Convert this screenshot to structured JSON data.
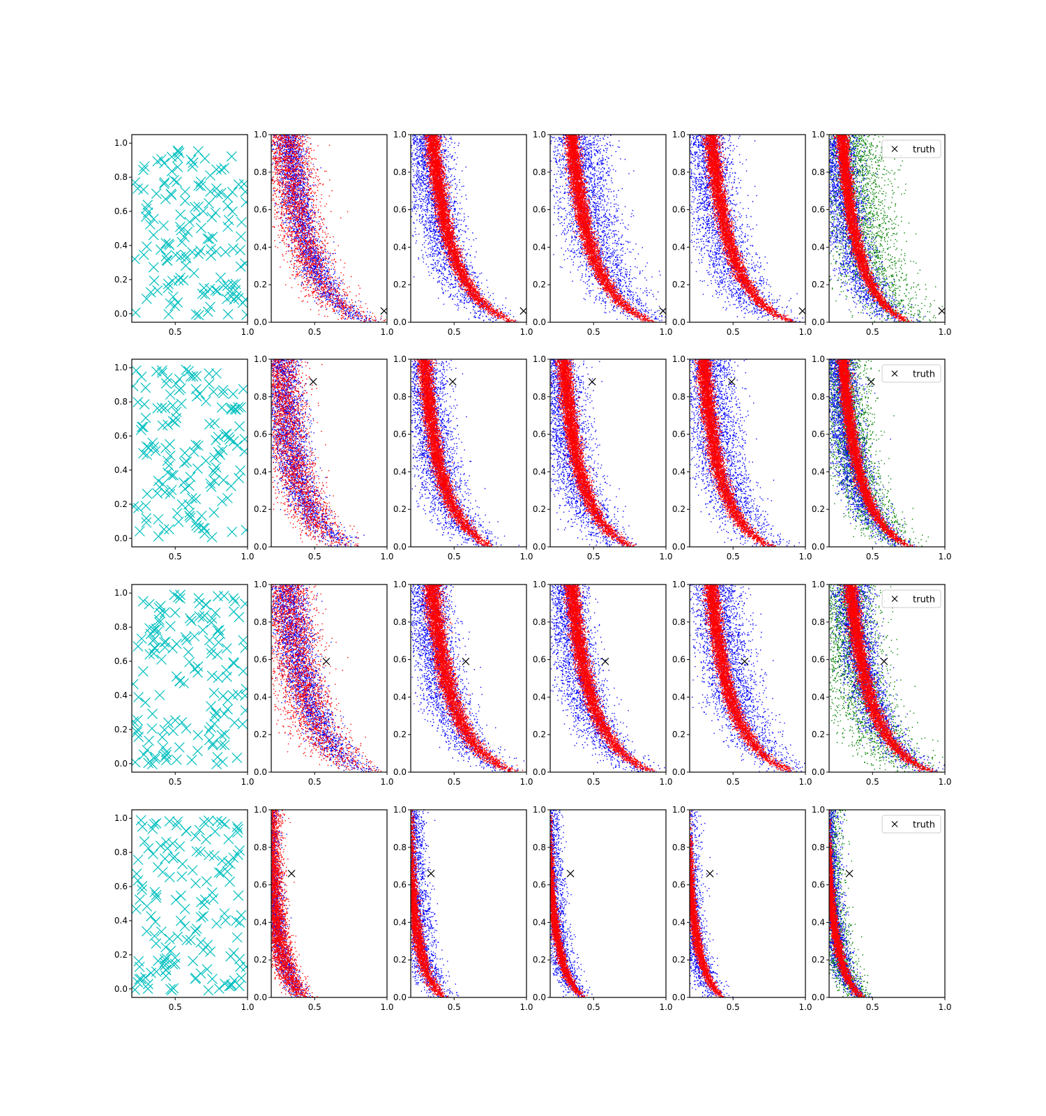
{
  "figure": {
    "colors": {
      "prior": "#00bfbf",
      "posterior_a": "#ff0000",
      "posterior_b": "#0000ff",
      "reference": "#008000",
      "truth": "#000000"
    }
  },
  "chart_data": {
    "type": "scatter",
    "layout": "grid",
    "rows": 4,
    "cols": 6,
    "legend": {
      "label": "truth",
      "marker": "x",
      "placement": "top-right",
      "columns": [
        5
      ]
    },
    "axes": {
      "prior": {
        "xlim": [
          0.2,
          1.0
        ],
        "ylim": [
          -0.05,
          1.05
        ],
        "xticks": [
          "0.5",
          "1.0"
        ],
        "yticks": [
          "0.0",
          "0.2",
          "0.4",
          "0.6",
          "0.8",
          "1.0"
        ]
      },
      "posterior": {
        "xlim": [
          0.2,
          1.0
        ],
        "ylim": [
          0.0,
          1.0
        ],
        "xticks": [
          "0.5",
          "1.0"
        ],
        "yticks": [
          "0.0",
          "0.2",
          "0.4",
          "0.6",
          "0.8",
          "1.0"
        ]
      }
    },
    "rows_data": [
      {
        "truth": [
          0.98,
          0.06
        ],
        "curve_k": 0.55,
        "prior_markers": 150,
        "panels": [
          {
            "col": 0,
            "type": "prior"
          },
          {
            "col": 1,
            "bands": [
              {
                "color": "posterior_b",
                "width": 0.1,
                "skew": 0.0
              },
              {
                "color": "posterior_a",
                "width": 0.16,
                "skew": 0.0
              }
            ],
            "band_highlight": "posterior_a"
          },
          {
            "col": 2,
            "bands": [
              {
                "color": "posterior_b",
                "width": 0.16,
                "skew": 0.0
              },
              {
                "color": "posterior_a",
                "width": 0.05,
                "skew": 0.0
              }
            ]
          },
          {
            "col": 3,
            "bands": [
              {
                "color": "posterior_b",
                "width": 0.18,
                "skew": 0.15
              },
              {
                "color": "posterior_a",
                "width": 0.05,
                "skew": 0.0
              }
            ]
          },
          {
            "col": 4,
            "bands": [
              {
                "color": "posterior_b",
                "width": 0.18,
                "skew": 0.0
              },
              {
                "color": "posterior_a",
                "width": 0.05,
                "skew": 0.0
              }
            ]
          },
          {
            "col": 5,
            "bands": [
              {
                "color": "reference",
                "width": 0.22,
                "skew": 0.18
              },
              {
                "color": "posterior_b",
                "width": 0.14,
                "skew": 0.0
              },
              {
                "color": "posterior_a",
                "width": 0.04,
                "skew": 0.0
              }
            ],
            "curve_k": 0.45
          }
        ]
      },
      {
        "truth": [
          0.49,
          0.88
        ],
        "curve_k": 0.46,
        "prior_markers": 150,
        "panels": [
          {
            "col": 0,
            "type": "prior"
          },
          {
            "col": 1,
            "bands": [
              {
                "color": "posterior_b",
                "width": 0.12,
                "skew": 0.0
              },
              {
                "color": "posterior_a",
                "width": 0.16,
                "skew": 0.0
              }
            ]
          },
          {
            "col": 2,
            "bands": [
              {
                "color": "posterior_b",
                "width": 0.16,
                "skew": 0.05
              },
              {
                "color": "posterior_a",
                "width": 0.05,
                "skew": 0.0
              }
            ]
          },
          {
            "col": 3,
            "bands": [
              {
                "color": "posterior_b",
                "width": 0.17,
                "skew": 0.0
              },
              {
                "color": "posterior_a",
                "width": 0.05,
                "skew": 0.0
              }
            ]
          },
          {
            "col": 4,
            "bands": [
              {
                "color": "posterior_b",
                "width": 0.17,
                "skew": 0.12
              },
              {
                "color": "posterior_a",
                "width": 0.05,
                "skew": 0.0
              }
            ]
          },
          {
            "col": 5,
            "bands": [
              {
                "color": "reference",
                "width": 0.16,
                "skew": 0.05
              },
              {
                "color": "posterior_b",
                "width": 0.12,
                "skew": 0.0
              },
              {
                "color": "posterior_a",
                "width": 0.04,
                "skew": 0.0
              }
            ]
          }
        ]
      },
      {
        "truth": [
          0.58,
          0.59
        ],
        "curve_k": 0.55,
        "prior_markers": 150,
        "panels": [
          {
            "col": 0,
            "type": "prior"
          },
          {
            "col": 1,
            "bands": [
              {
                "color": "posterior_b",
                "width": 0.12,
                "skew": 0.0
              },
              {
                "color": "posterior_a",
                "width": 0.18,
                "skew": 0.0
              }
            ]
          },
          {
            "col": 2,
            "bands": [
              {
                "color": "posterior_b",
                "width": 0.16,
                "skew": 0.0
              },
              {
                "color": "posterior_a",
                "width": 0.06,
                "skew": 0.0
              }
            ]
          },
          {
            "col": 3,
            "bands": [
              {
                "color": "posterior_b",
                "width": 0.15,
                "skew": 0.0
              },
              {
                "color": "posterior_a",
                "width": 0.05,
                "skew": 0.0
              }
            ]
          },
          {
            "col": 4,
            "bands": [
              {
                "color": "posterior_b",
                "width": 0.17,
                "skew": 0.12
              },
              {
                "color": "posterior_a",
                "width": 0.05,
                "skew": 0.0
              }
            ]
          },
          {
            "col": 5,
            "bands": [
              {
                "color": "reference",
                "width": 0.22,
                "skew": 0.0
              },
              {
                "color": "posterior_b",
                "width": 0.12,
                "skew": 0.06
              },
              {
                "color": "posterior_a",
                "width": 0.05,
                "skew": 0.0
              }
            ]
          }
        ]
      },
      {
        "truth": [
          0.34,
          0.66
        ],
        "curve_k": 0.25,
        "prior_markers": 150,
        "panels": [
          {
            "col": 0,
            "type": "prior"
          },
          {
            "col": 1,
            "bands": [
              {
                "color": "posterior_b",
                "width": 0.07,
                "skew": 0.0
              },
              {
                "color": "posterior_a",
                "width": 0.08,
                "skew": 0.0
              }
            ]
          },
          {
            "col": 2,
            "bands": [
              {
                "color": "posterior_b",
                "width": 0.1,
                "skew": 0.06
              },
              {
                "color": "posterior_a",
                "width": 0.04,
                "skew": 0.0
              }
            ]
          },
          {
            "col": 3,
            "bands": [
              {
                "color": "posterior_b",
                "width": 0.09,
                "skew": 0.0
              },
              {
                "color": "posterior_a",
                "width": 0.03,
                "skew": 0.0
              }
            ]
          },
          {
            "col": 4,
            "bands": [
              {
                "color": "posterior_b",
                "width": 0.1,
                "skew": 0.0
              },
              {
                "color": "posterior_a",
                "width": 0.03,
                "skew": 0.0
              }
            ]
          },
          {
            "col": 5,
            "bands": [
              {
                "color": "reference",
                "width": 0.1,
                "skew": 0.03
              },
              {
                "color": "posterior_b",
                "width": 0.08,
                "skew": 0.0
              },
              {
                "color": "posterior_a",
                "width": 0.03,
                "skew": 0.0
              }
            ]
          }
        ]
      }
    ]
  }
}
